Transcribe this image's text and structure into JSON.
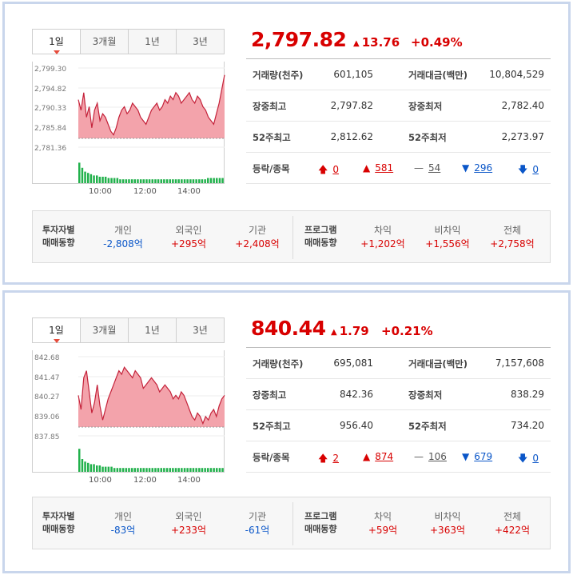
{
  "indices": [
    {
      "tabs": [
        "1일",
        "3개월",
        "1년",
        "3년"
      ],
      "price": "2,797.82",
      "change": "13.76",
      "change_pct": "+0.49%",
      "chart": {
        "y_ticks": [
          "2,799.30",
          "2,794.82",
          "2,790.33",
          "2,785.84",
          "2,781.36"
        ],
        "x_ticks": [
          "10:00",
          "12:00",
          "14:00"
        ]
      },
      "stats": {
        "volume_label": "거래량(천주)",
        "volume": "601,105",
        "amount_label": "거래대금(백만)",
        "amount": "10,804,529",
        "high_label": "장중최고",
        "high": "2,797.82",
        "low_label": "장중최저",
        "low": "2,782.40",
        "w52_high_label": "52주최고",
        "w52_high": "2,812.62",
        "w52_low_label": "52주최저",
        "w52_low": "2,273.97",
        "breadth_label": "등락/종목",
        "upper_limit": "0",
        "up": "581",
        "unchanged": "54",
        "down": "296",
        "lower_limit": "0"
      },
      "flow": {
        "investor_title_1": "투자자별",
        "investor_title_2": "매매동향",
        "individual_label": "개인",
        "individual": "-2,808억",
        "foreign_label": "외국인",
        "foreign": "+295억",
        "institution_label": "기관",
        "institution": "+2,408억",
        "program_title_1": "프로그램",
        "program_title_2": "매매동향",
        "arb_label": "차익",
        "arb": "+1,202억",
        "nonarb_label": "비차익",
        "nonarb": "+1,556억",
        "total_label": "전체",
        "total": "+2,758억"
      }
    },
    {
      "tabs": [
        "1일",
        "3개월",
        "1년",
        "3년"
      ],
      "price": "840.44",
      "change": "1.79",
      "change_pct": "+0.21%",
      "chart": {
        "y_ticks": [
          "842.68",
          "841.47",
          "840.27",
          "839.06",
          "837.85"
        ],
        "x_ticks": [
          "10:00",
          "12:00",
          "14:00"
        ]
      },
      "stats": {
        "volume_label": "거래량(천주)",
        "volume": "695,081",
        "amount_label": "거래대금(백만)",
        "amount": "7,157,608",
        "high_label": "장중최고",
        "high": "842.36",
        "low_label": "장중최저",
        "low": "838.29",
        "w52_high_label": "52주최고",
        "w52_high": "956.40",
        "w52_low_label": "52주최저",
        "w52_low": "734.20",
        "breadth_label": "등락/종목",
        "upper_limit": "2",
        "up": "874",
        "unchanged": "106",
        "down": "679",
        "lower_limit": "0"
      },
      "flow": {
        "investor_title_1": "투자자별",
        "investor_title_2": "매매동향",
        "individual_label": "개인",
        "individual": "-83억",
        "foreign_label": "외국인",
        "foreign": "+233억",
        "institution_label": "기관",
        "institution": "-61억",
        "program_title_1": "프로그램",
        "program_title_2": "매매동향",
        "arb_label": "차익",
        "arb": "+59억",
        "nonarb_label": "비차익",
        "nonarb": "+363억",
        "total_label": "전체",
        "total": "+422억"
      }
    }
  ],
  "colors": {
    "up": "#d80000",
    "down": "#0a56c8",
    "area": "#f3a3ab",
    "volume": "#22b14c"
  }
}
